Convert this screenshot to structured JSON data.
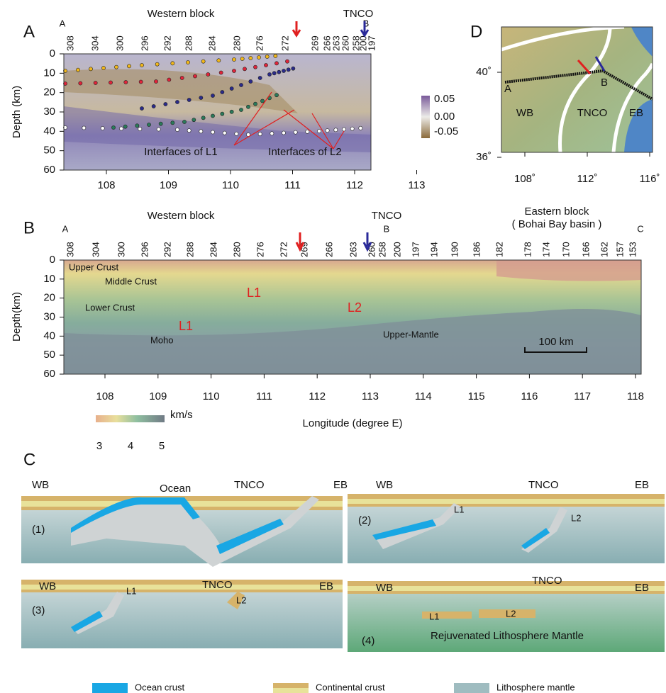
{
  "panel_a": {
    "label": "A",
    "title": "Western block",
    "tnco": "TNCO",
    "start": "A",
    "end": "B",
    "stations": [
      "308",
      "304",
      "300",
      "296",
      "292",
      "288",
      "284",
      "280",
      "276",
      "272",
      "269",
      "266",
      "263",
      "260",
      "258",
      "200",
      "197"
    ],
    "y_label": "Depth (km)",
    "yticks": [
      0,
      10,
      20,
      30,
      40,
      50,
      60
    ],
    "xticks": [
      108,
      109,
      110,
      111,
      112,
      113
    ],
    "colorbar_ticks": [
      "0.05",
      "0.00",
      "-0.05"
    ],
    "annotations": [
      "Interfaces of L1",
      "Interfaces of L2"
    ]
  },
  "panel_d": {
    "label": "D",
    "lat_ticks": [
      "40˚",
      "36˚"
    ],
    "lon_ticks": [
      "108˚",
      "112˚",
      "116˚"
    ],
    "point_a": "A",
    "point_b": "B",
    "regions": [
      "WB",
      "TNCO",
      "EB"
    ]
  },
  "panel_b": {
    "label": "B",
    "title": "Western block",
    "tnco": "TNCO",
    "eastern": "Eastern block",
    "eastern_sub": "( Bohai Bay basin )",
    "start": "A",
    "mid": "B",
    "end": "C",
    "stations": [
      "308",
      "304",
      "300",
      "296",
      "292",
      "288",
      "284",
      "280",
      "276",
      "272",
      "269",
      "266",
      "263",
      "260",
      "258",
      "200",
      "197",
      "194",
      "190",
      "186",
      "182",
      "178",
      "174",
      "170",
      "166",
      "162",
      "157",
      "153"
    ],
    "y_label": "Depth(km)",
    "yticks": [
      0,
      10,
      20,
      30,
      40,
      50,
      60
    ],
    "xticks": [
      108,
      109,
      110,
      111,
      112,
      113,
      114,
      115,
      116,
      117,
      118
    ],
    "x_label": "Longitude (degree E)",
    "layers": [
      "Upper Crust",
      "Middle Crust",
      "Lower Crust",
      "Moho",
      "Upper-Mantle"
    ],
    "marks": [
      "L1",
      "L1",
      "L2"
    ],
    "scale_bar": "100 km",
    "colorbar_unit": "km/s",
    "colorbar_ticks": [
      3,
      4,
      5
    ]
  },
  "panel_c": {
    "label": "C",
    "stages": [
      {
        "number": "(1)",
        "labels": [
          "WB",
          "Ocean",
          "TNCO",
          "EB"
        ]
      },
      {
        "number": "(2)",
        "labels": [
          "WB",
          "TNCO",
          "EB",
          "L1",
          "L2"
        ]
      },
      {
        "number": "(3)",
        "labels": [
          "WB",
          "TNCO",
          "EB",
          "L1",
          "L2"
        ]
      },
      {
        "number": "(4)",
        "labels": [
          "WB",
          "TNCO",
          "EB",
          "L1",
          "L2",
          "Rejuvenated  Lithosphere  Mantle"
        ]
      }
    ],
    "legend": [
      "Ocean crust",
      "Continental crust",
      "Lithosphere mantle"
    ]
  }
}
